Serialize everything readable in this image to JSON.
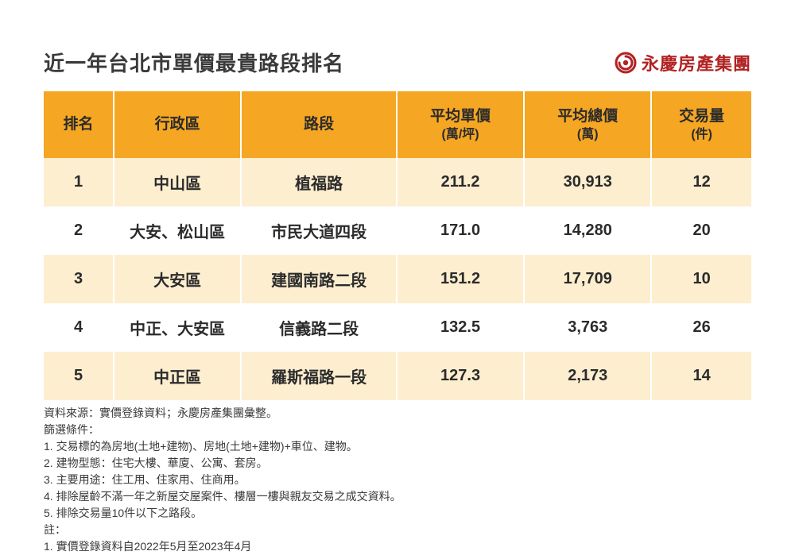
{
  "title": "近一年台北市單價最貴路段排名",
  "brand_name": "永慶房產集團",
  "brand_color": "#b22222",
  "header_bg": "#f5a623",
  "row_odd_bg": "#fdeed0",
  "row_even_bg": "#ffffff",
  "text_color": "#2b2b2b",
  "columns": [
    {
      "label": "排名",
      "sub": ""
    },
    {
      "label": "行政區",
      "sub": ""
    },
    {
      "label": "路段",
      "sub": ""
    },
    {
      "label": "平均單價",
      "sub": "(萬/坪)"
    },
    {
      "label": "平均總價",
      "sub": "(萬)"
    },
    {
      "label": "交易量",
      "sub": "(件)"
    }
  ],
  "rows": [
    {
      "rank": "1",
      "district": "中山區",
      "road": "植福路",
      "unit_price": "211.2",
      "total_price": "30,913",
      "volume": "12"
    },
    {
      "rank": "2",
      "district": "大安、松山區",
      "road": "市民大道四段",
      "unit_price": "171.0",
      "total_price": "14,280",
      "volume": "20"
    },
    {
      "rank": "3",
      "district": "大安區",
      "road": "建國南路二段",
      "unit_price": "151.2",
      "total_price": "17,709",
      "volume": "10"
    },
    {
      "rank": "4",
      "district": "中正、大安區",
      "road": "信義路二段",
      "unit_price": "132.5",
      "total_price": "3,763",
      "volume": "26"
    },
    {
      "rank": "5",
      "district": "中正區",
      "road": "羅斯福路一段",
      "unit_price": "127.3",
      "total_price": "2,173",
      "volume": "14"
    }
  ],
  "notes": {
    "source": "資料來源：實價登錄資料；永慶房產集團彙整。",
    "filter_label": "篩選條件：",
    "filters": [
      "1. 交易標的為房地(土地+建物)、房地(土地+建物)+車位、建物。",
      "2. 建物型態：住宅大樓、華廈、公寓、套房。",
      "3. 主要用途：住工用、住家用、住商用。",
      "4. 排除屋齡不滿一年之新屋交屋案件、樓層一樓與親友交易之成交資料。",
      "5. 排除交易量10件以下之路段。"
    ],
    "remark_label": "註：",
    "remarks": [
      "1. 實價登錄資料自2022年5月至2023年4月"
    ]
  }
}
